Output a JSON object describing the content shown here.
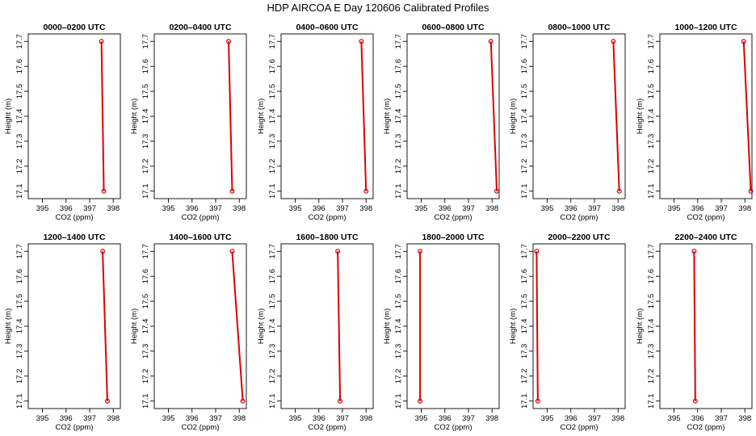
{
  "figure": {
    "title": "HDP AIRCOA E  Day 120606  Calibrated Profiles",
    "colors": {
      "series": "#dd0000",
      "axes": "#000000",
      "background": "#ffffff"
    }
  },
  "chart_data": [
    {
      "type": "line",
      "title": "0000–0200 UTC",
      "xlabel": "CO2 (ppm)",
      "ylabel": "Height (m)",
      "xlim": [
        394.4,
        398.3
      ],
      "ylim": [
        17.07,
        17.73
      ],
      "xticks": [
        395,
        396,
        397,
        398
      ],
      "yticks": [
        17.1,
        17.2,
        17.3,
        17.4,
        17.5,
        17.6,
        17.7
      ],
      "grid": false,
      "points": [
        {
          "x": 397.5,
          "y": 17.7
        },
        {
          "x": 397.6,
          "y": 17.1
        }
      ]
    },
    {
      "type": "line",
      "title": "0200–0400 UTC",
      "xlabel": "CO2 (ppm)",
      "ylabel": "Height (m)",
      "xlim": [
        394.4,
        398.3
      ],
      "ylim": [
        17.07,
        17.73
      ],
      "xticks": [
        395,
        396,
        397,
        398
      ],
      "yticks": [
        17.1,
        17.2,
        17.3,
        17.4,
        17.5,
        17.6,
        17.7
      ],
      "grid": false,
      "points": [
        {
          "x": 397.55,
          "y": 17.7
        },
        {
          "x": 397.7,
          "y": 17.1
        }
      ]
    },
    {
      "type": "line",
      "title": "0400–0600 UTC",
      "xlabel": "CO2 (ppm)",
      "ylabel": "Height (m)",
      "xlim": [
        394.4,
        398.3
      ],
      "ylim": [
        17.07,
        17.73
      ],
      "xticks": [
        395,
        396,
        397,
        398
      ],
      "yticks": [
        17.1,
        17.2,
        17.3,
        17.4,
        17.5,
        17.6,
        17.7
      ],
      "grid": false,
      "points": [
        {
          "x": 397.8,
          "y": 17.7
        },
        {
          "x": 398.0,
          "y": 17.1
        }
      ]
    },
    {
      "type": "line",
      "title": "0600–0800 UTC",
      "xlabel": "CO2 (ppm)",
      "ylabel": "Height (m)",
      "xlim": [
        394.4,
        398.3
      ],
      "ylim": [
        17.07,
        17.73
      ],
      "xticks": [
        395,
        396,
        397,
        398
      ],
      "yticks": [
        17.1,
        17.2,
        17.3,
        17.4,
        17.5,
        17.6,
        17.7
      ],
      "grid": false,
      "points": [
        {
          "x": 397.95,
          "y": 17.7
        },
        {
          "x": 398.2,
          "y": 17.1
        }
      ]
    },
    {
      "type": "line",
      "title": "0800–1000 UTC",
      "xlabel": "CO2 (ppm)",
      "ylabel": "Height (m)",
      "xlim": [
        394.4,
        398.3
      ],
      "ylim": [
        17.07,
        17.73
      ],
      "xticks": [
        395,
        396,
        397,
        398
      ],
      "yticks": [
        17.1,
        17.2,
        17.3,
        17.4,
        17.5,
        17.6,
        17.7
      ],
      "grid": false,
      "points": [
        {
          "x": 397.8,
          "y": 17.7
        },
        {
          "x": 398.05,
          "y": 17.1
        }
      ]
    },
    {
      "type": "line",
      "title": "1000–1200 UTC",
      "xlabel": "CO2 (ppm)",
      "ylabel": "Height (m)",
      "xlim": [
        394.4,
        398.3
      ],
      "ylim": [
        17.07,
        17.73
      ],
      "xticks": [
        395,
        396,
        397,
        398
      ],
      "yticks": [
        17.1,
        17.2,
        17.3,
        17.4,
        17.5,
        17.6,
        17.7
      ],
      "grid": false,
      "points": [
        {
          "x": 397.95,
          "y": 17.7
        },
        {
          "x": 398.25,
          "y": 17.1
        }
      ]
    },
    {
      "type": "line",
      "title": "1200–1400 UTC",
      "xlabel": "CO2 (ppm)",
      "ylabel": "Height (m)",
      "xlim": [
        394.4,
        398.3
      ],
      "ylim": [
        17.07,
        17.73
      ],
      "xticks": [
        395,
        396,
        397,
        398
      ],
      "yticks": [
        17.1,
        17.2,
        17.3,
        17.4,
        17.5,
        17.6,
        17.7
      ],
      "grid": false,
      "points": [
        {
          "x": 397.55,
          "y": 17.7
        },
        {
          "x": 397.75,
          "y": 17.1
        }
      ]
    },
    {
      "type": "line",
      "title": "1400–1600 UTC",
      "xlabel": "CO2 (ppm)",
      "ylabel": "Height (m)",
      "xlim": [
        394.4,
        398.3
      ],
      "ylim": [
        17.07,
        17.73
      ],
      "xticks": [
        395,
        396,
        397,
        398
      ],
      "yticks": [
        17.1,
        17.2,
        17.3,
        17.4,
        17.5,
        17.6,
        17.7
      ],
      "grid": false,
      "points": [
        {
          "x": 397.7,
          "y": 17.7
        },
        {
          "x": 398.15,
          "y": 17.1
        }
      ]
    },
    {
      "type": "line",
      "title": "1600–1800 UTC",
      "xlabel": "CO2 (ppm)",
      "ylabel": "Height (m)",
      "xlim": [
        394.4,
        398.3
      ],
      "ylim": [
        17.07,
        17.73
      ],
      "xticks": [
        395,
        396,
        397,
        398
      ],
      "yticks": [
        17.1,
        17.2,
        17.3,
        17.4,
        17.5,
        17.6,
        17.7
      ],
      "grid": false,
      "points": [
        {
          "x": 396.8,
          "y": 17.7
        },
        {
          "x": 396.9,
          "y": 17.1
        }
      ]
    },
    {
      "type": "line",
      "title": "1800–2000 UTC",
      "xlabel": "CO2 (ppm)",
      "ylabel": "Height (m)",
      "xlim": [
        394.4,
        398.3
      ],
      "ylim": [
        17.07,
        17.73
      ],
      "xticks": [
        395,
        396,
        397,
        398
      ],
      "yticks": [
        17.1,
        17.2,
        17.3,
        17.4,
        17.5,
        17.6,
        17.7
      ],
      "grid": false,
      "points": [
        {
          "x": 394.95,
          "y": 17.7
        },
        {
          "x": 394.95,
          "y": 17.1
        }
      ]
    },
    {
      "type": "line",
      "title": "2000–2200 UTC",
      "xlabel": "CO2 (ppm)",
      "ylabel": "Height (m)",
      "xlim": [
        394.4,
        398.3
      ],
      "ylim": [
        17.07,
        17.73
      ],
      "xticks": [
        395,
        396,
        397,
        398
      ],
      "yticks": [
        17.1,
        17.2,
        17.3,
        17.4,
        17.5,
        17.6,
        17.7
      ],
      "grid": false,
      "points": [
        {
          "x": 394.55,
          "y": 17.7
        },
        {
          "x": 394.6,
          "y": 17.1
        }
      ]
    },
    {
      "type": "line",
      "title": "2200–2400 UTC",
      "xlabel": "CO2 (ppm)",
      "ylabel": "Height (m)",
      "xlim": [
        394.4,
        398.3
      ],
      "ylim": [
        17.07,
        17.73
      ],
      "xticks": [
        395,
        396,
        397,
        398
      ],
      "yticks": [
        17.1,
        17.2,
        17.3,
        17.4,
        17.5,
        17.6,
        17.7
      ],
      "grid": false,
      "points": [
        {
          "x": 395.85,
          "y": 17.7
        },
        {
          "x": 395.9,
          "y": 17.1
        }
      ]
    }
  ]
}
